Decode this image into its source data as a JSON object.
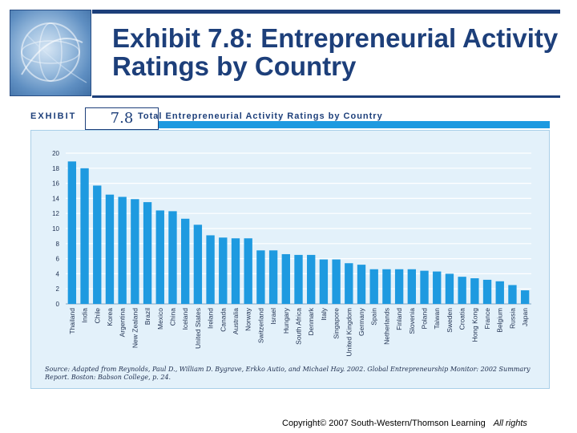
{
  "slide": {
    "title": "Exhibit 7.8: Entrepreneurial Activity Ratings by Country",
    "copyright": "Copyright© 2007 South-Western/Thomson Learning",
    "rights": "All rights"
  },
  "exhibit": {
    "label": "EXHIBIT",
    "number": "7.8",
    "heading": "Total Entrepreneurial Activity Ratings by Country",
    "source": "Source: Adapted from Reynolds, Paul D., William D. Bygrave, Erkko Autio, and Michael Hay. 2002. Global Entrepreneurship Monitor: 2002 Summary Report. Boston: Babson College, p. 24."
  },
  "colors": {
    "bar": "#1e9ae0",
    "accent": "#1d3f7a",
    "panel": "#e3f1fa",
    "grid": "#ffffff"
  },
  "chart_data": {
    "type": "bar",
    "title": "Total Entrepreneurial Activity Ratings by Country",
    "categories": [
      "Thailand",
      "India",
      "Chile",
      "Korea",
      "Argentina",
      "New Zealand",
      "Brazil",
      "Mexico",
      "China",
      "Iceland",
      "United States",
      "Ireland",
      "Canada",
      "Australia",
      "Norway",
      "Switzerland",
      "Israel",
      "Hungary",
      "South Africa",
      "Denmark",
      "Italy",
      "Singapore",
      "United Kingdom",
      "Germany",
      "Spain",
      "Netherlands",
      "Finland",
      "Slovenia",
      "Poland",
      "Taiwan",
      "Sweden",
      "Croatia",
      "Hong Kong",
      "France",
      "Belgium",
      "Russia",
      "Japan"
    ],
    "values": [
      18.9,
      18.0,
      15.7,
      14.5,
      14.2,
      13.9,
      13.5,
      12.4,
      12.3,
      11.3,
      10.5,
      9.1,
      8.8,
      8.7,
      8.7,
      7.1,
      7.1,
      6.6,
      6.5,
      6.5,
      5.9,
      5.9,
      5.4,
      5.2,
      4.6,
      4.6,
      4.6,
      4.6,
      4.4,
      4.3,
      4.0,
      3.6,
      3.4,
      3.2,
      3.0,
      2.5,
      1.8
    ],
    "yticks": [
      0,
      2,
      4,
      6,
      8,
      10,
      12,
      14,
      16,
      18,
      20
    ],
    "ylim": [
      0,
      20
    ],
    "grid": true,
    "legend": "none"
  }
}
